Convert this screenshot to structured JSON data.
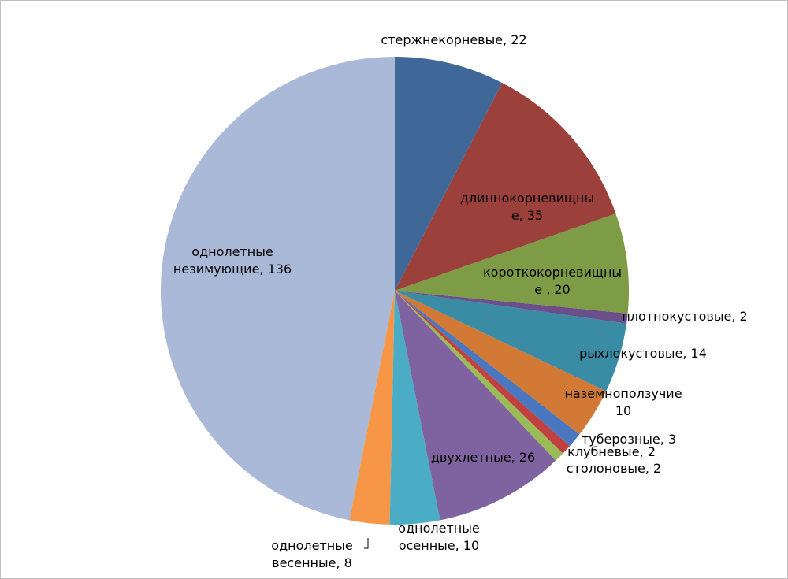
{
  "chart_data": {
    "type": "pie",
    "value_labels": [
      "стержнекорневые, 22",
      "длиннокорневищные, 35",
      "короткокорневищные , 20",
      "плотнокустовые, 2",
      "рыхлокустовые, 14",
      "наземноползучие 10",
      "туберозные, 3",
      "клубневые, 2",
      "столоновые, 2",
      "двухлетные, 26",
      "однолетные осенные, 10",
      "однолетные весенные, 8",
      "однолетные незимующие, 136"
    ],
    "values": [
      22,
      35,
      20,
      2,
      14,
      10,
      3,
      2,
      2,
      26,
      10,
      8,
      136
    ],
    "colors": [
      "#3f6899",
      "#9c403c",
      "#7e9b45",
      "#6a4f8a",
      "#3a8ca4",
      "#d27a35",
      "#4a78c0",
      "#c0413f",
      "#9bbb59",
      "#7f62a0",
      "#4bacc6",
      "#f79646",
      "#aab9d8"
    ]
  }
}
